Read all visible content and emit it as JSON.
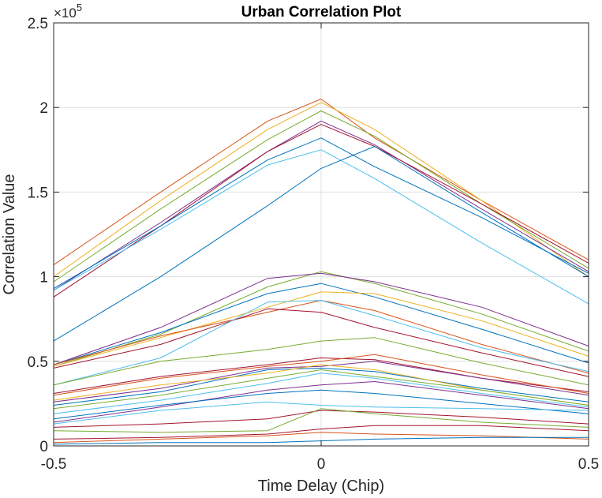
{
  "chart_data": {
    "type": "line",
    "title": "Urban Correlation Plot",
    "xlabel": "Time Delay (Chip)",
    "ylabel": "Correlation Value",
    "y_exponent_label": "×10",
    "y_exponent": "5",
    "xlim": [
      -0.5,
      0.5
    ],
    "ylim": [
      0,
      2.5
    ],
    "x": [
      -0.5,
      -0.3,
      -0.1,
      0,
      0.1,
      0.3,
      0.5
    ],
    "x_ticks": [
      -0.5,
      0,
      0.5
    ],
    "x_tick_labels": [
      "-0.5",
      "0",
      "0.5"
    ],
    "y_ticks": [
      0,
      0.5,
      1,
      1.5,
      2,
      2.5
    ],
    "y_tick_labels": [
      "0",
      "0.5",
      "1",
      "1.5",
      "2",
      "2.5"
    ],
    "grid": true,
    "series": [
      {
        "color": "#D95319",
        "values": [
          1.07,
          1.5,
          1.92,
          2.05,
          1.82,
          1.45,
          1.1
        ]
      },
      {
        "color": "#EDB120",
        "values": [
          1.0,
          1.45,
          1.87,
          2.03,
          1.87,
          1.45,
          1.0
        ]
      },
      {
        "color": "#77AC30",
        "values": [
          0.97,
          1.4,
          1.81,
          1.98,
          1.83,
          1.43,
          1.05
        ]
      },
      {
        "color": "#7E2F8E",
        "values": [
          0.92,
          1.32,
          1.74,
          1.92,
          1.78,
          1.4,
          1.03
        ]
      },
      {
        "color": "#A2142F",
        "values": [
          0.88,
          1.3,
          1.74,
          1.9,
          1.77,
          1.43,
          1.08
        ]
      },
      {
        "color": "#0072BD",
        "values": [
          0.93,
          1.3,
          1.69,
          1.82,
          1.65,
          1.35,
          1.02
        ]
      },
      {
        "color": "#4DBEEE",
        "values": [
          0.92,
          1.28,
          1.66,
          1.75,
          1.58,
          1.2,
          0.84
        ]
      },
      {
        "color": "#0072BD",
        "values": [
          0.62,
          1.0,
          1.42,
          1.64,
          1.77,
          1.38,
          1.0
        ]
      },
      {
        "color": "#77AC30",
        "values": [
          0.47,
          0.66,
          0.94,
          1.03,
          0.96,
          0.78,
          0.56
        ]
      },
      {
        "color": "#7E2F8E",
        "values": [
          0.48,
          0.7,
          0.99,
          1.02,
          0.97,
          0.82,
          0.59
        ]
      },
      {
        "color": "#0072BD",
        "values": [
          0.48,
          0.67,
          0.9,
          0.96,
          0.88,
          0.69,
          0.49
        ]
      },
      {
        "color": "#EDB120",
        "values": [
          0.47,
          0.64,
          0.82,
          0.91,
          0.9,
          0.74,
          0.53
        ]
      },
      {
        "color": "#D95319",
        "values": [
          0.48,
          0.65,
          0.79,
          0.86,
          0.8,
          0.6,
          0.43
        ]
      },
      {
        "color": "#A2142F",
        "values": [
          0.46,
          0.6,
          0.81,
          0.79,
          0.7,
          0.55,
          0.41
        ]
      },
      {
        "color": "#4DBEEE",
        "values": [
          0.36,
          0.52,
          0.85,
          0.86,
          0.77,
          0.58,
          0.44
        ]
      },
      {
        "color": "#77AC30",
        "values": [
          0.36,
          0.5,
          0.57,
          0.62,
          0.64,
          0.49,
          0.36
        ]
      },
      {
        "color": "#A2142F",
        "values": [
          0.31,
          0.41,
          0.48,
          0.52,
          0.51,
          0.4,
          0.32
        ]
      },
      {
        "color": "#D95319",
        "values": [
          0.3,
          0.4,
          0.47,
          0.5,
          0.54,
          0.42,
          0.31
        ]
      },
      {
        "color": "#7E2F8E",
        "values": [
          0.26,
          0.34,
          0.46,
          0.47,
          0.5,
          0.4,
          0.3
        ]
      },
      {
        "color": "#0072BD",
        "values": [
          0.24,
          0.32,
          0.45,
          0.46,
          0.44,
          0.34,
          0.26
        ]
      },
      {
        "color": "#EDB120",
        "values": [
          0.27,
          0.36,
          0.43,
          0.48,
          0.45,
          0.33,
          0.24
        ]
      },
      {
        "color": "#77AC30",
        "values": [
          0.22,
          0.3,
          0.4,
          0.45,
          0.41,
          0.33,
          0.24
        ]
      },
      {
        "color": "#4DBEEE",
        "values": [
          0.19,
          0.27,
          0.37,
          0.43,
          0.4,
          0.31,
          0.23
        ]
      },
      {
        "color": "#7E2F8E",
        "values": [
          0.14,
          0.23,
          0.33,
          0.36,
          0.38,
          0.3,
          0.22
        ]
      },
      {
        "color": "#0072BD",
        "values": [
          0.16,
          0.24,
          0.31,
          0.33,
          0.31,
          0.25,
          0.19
        ]
      },
      {
        "color": "#4DBEEE",
        "values": [
          0.13,
          0.21,
          0.26,
          0.24,
          0.23,
          0.22,
          0.21
        ]
      },
      {
        "color": "#A2142F",
        "values": [
          0.11,
          0.13,
          0.16,
          0.21,
          0.2,
          0.17,
          0.13
        ]
      },
      {
        "color": "#77AC30",
        "values": [
          0.09,
          0.08,
          0.09,
          0.22,
          0.19,
          0.14,
          0.11
        ]
      },
      {
        "color": "#A2142F",
        "values": [
          0.04,
          0.05,
          0.07,
          0.1,
          0.12,
          0.12,
          0.09
        ]
      },
      {
        "color": "#D95319",
        "values": [
          0.02,
          0.04,
          0.06,
          0.08,
          0.07,
          0.06,
          0.04
        ]
      },
      {
        "color": "#0072BD",
        "values": [
          0.01,
          0.02,
          0.02,
          0.03,
          0.04,
          0.05,
          0.05
        ]
      }
    ]
  }
}
